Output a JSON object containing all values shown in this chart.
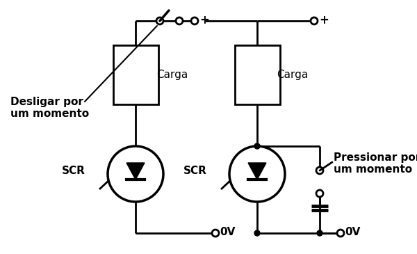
{
  "bg_color": "#ffffff",
  "line_color": "#000000",
  "lw": 2.0,
  "fig_width": 6.0,
  "fig_height": 3.65,
  "dpi": 100,
  "label_desligar": "Desligar por\num momento",
  "label_pressionar": "Pressionar por\num momento",
  "label_carga1": "Carga",
  "label_carga2": "Carga",
  "label_scr1": "SCR",
  "label_scr2": "SCR",
  "label_0v1": "0V",
  "label_0v2": "0V",
  "label_plus1": "+",
  "label_plus2": "+"
}
